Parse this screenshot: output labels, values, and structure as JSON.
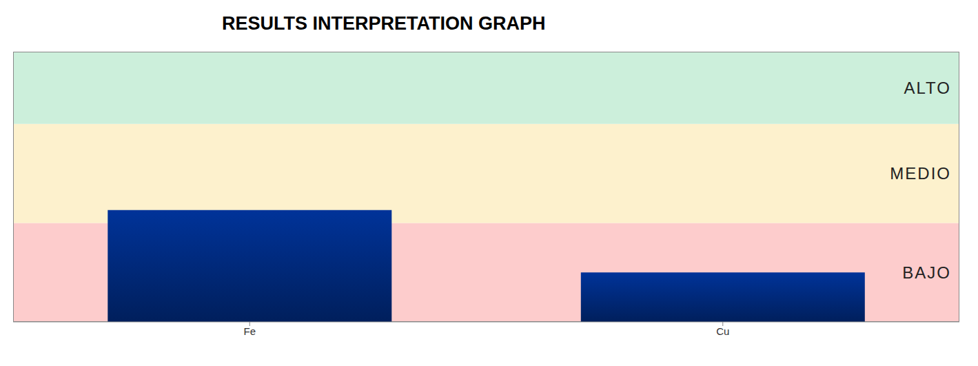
{
  "chart_data": {
    "type": "bar",
    "title": "RESULTS INTERPRETATION GRAPH",
    "categories": [
      "Fe",
      "Cu"
    ],
    "values": [
      1.13,
      0.5
    ],
    "color": "#003399",
    "ylim": [
      0,
      2.73
    ],
    "tick_labels": "x",
    "bands": [
      {
        "label": "BAJO",
        "from": 0,
        "to": 1,
        "color": "#fdcccc"
      },
      {
        "label": "MEDIO",
        "from": 1,
        "to": 2,
        "color": "#fdf1cd"
      },
      {
        "label": "ALTO",
        "from": 2,
        "to": 2.73,
        "color": "#ccefdb"
      }
    ]
  }
}
